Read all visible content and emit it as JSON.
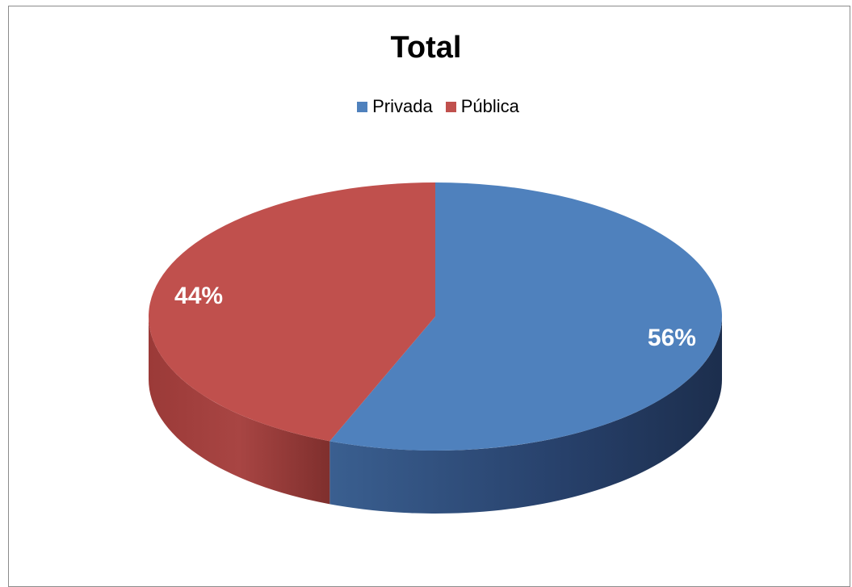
{
  "chart_data": {
    "type": "pie",
    "title": "Total",
    "legend_position": "top",
    "slices": [
      {
        "label": "Privada",
        "value": 56,
        "display": "56%",
        "color": "#4F81BD"
      },
      {
        "label": "Pública",
        "value": 44,
        "display": "44%",
        "color": "#C0504D"
      }
    ]
  }
}
